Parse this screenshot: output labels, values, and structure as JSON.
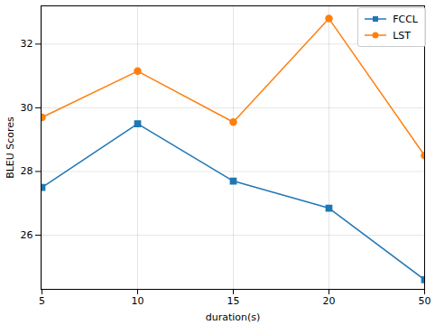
{
  "chart_data": {
    "type": "line",
    "x_label": "duration(s)",
    "y_label": "BLEU Scores",
    "categories": [
      "5",
      "10",
      "15",
      "20",
      "50"
    ],
    "series": [
      {
        "name": "FCCL",
        "color": "#1f77b4",
        "marker": "square",
        "values": [
          27.5,
          29.5,
          27.7,
          26.85,
          24.6
        ]
      },
      {
        "name": "LST",
        "color": "#ff7f0e",
        "marker": "circle",
        "values": [
          29.7,
          31.15,
          29.55,
          32.8,
          28.5
        ]
      }
    ],
    "ylim": [
      24.3,
      33.2
    ],
    "yticks": [
      26,
      28,
      30,
      32
    ],
    "grid": true,
    "legend": "upper right"
  }
}
